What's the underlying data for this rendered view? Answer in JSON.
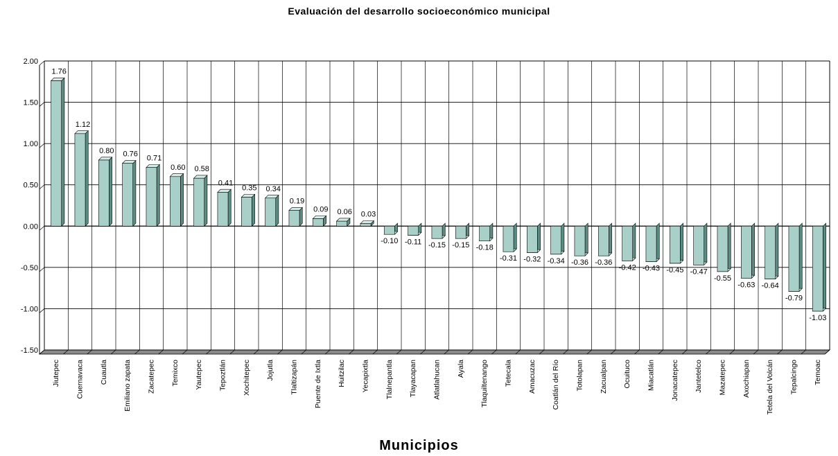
{
  "chart_data": {
    "type": "bar",
    "title": "Evaluación del desarrollo socioeconómico municipal",
    "xlabel": "Municipios",
    "ylabel": "",
    "ylim": [
      -1.5,
      2.0
    ],
    "yticks": [
      "2.00",
      "1.50",
      "1.00",
      "0.50",
      "0.00",
      "-0.50",
      "-1.00",
      "-1.50"
    ],
    "grid": true,
    "categories": [
      "Jiutepec",
      "Cuernavaca",
      "Cuautla",
      "Emiliano zapata",
      "Zacatepec",
      "Temixco",
      "Yautepec",
      "Tepoztlán",
      "Xochitepec",
      "Jojutla",
      "Tlaltizapán",
      "Puente de Ixtla",
      "Huitzilac",
      "Yecapixtla",
      "Tlalnepantla",
      "Tlayacapan",
      "Atlatlahucan",
      "Ayala",
      "Tlaquiltenango",
      "Tetecala",
      "Amacuzac",
      "Coatlán del Río",
      "Totolapan",
      "Zacualpan",
      "Ocuituco",
      "Miacatlán",
      "Jonacatepec",
      "Jantetelco",
      "Mazatepec",
      "Axochiapan",
      "Tetela del Volcán",
      "Tepalcingo",
      "Temoac"
    ],
    "values": [
      1.76,
      1.12,
      0.8,
      0.76,
      0.71,
      0.6,
      0.58,
      0.41,
      0.35,
      0.34,
      0.19,
      0.09,
      0.06,
      0.03,
      -0.1,
      -0.11,
      -0.15,
      -0.15,
      -0.18,
      -0.31,
      -0.32,
      -0.34,
      -0.36,
      -0.36,
      -0.42,
      -0.43,
      -0.45,
      -0.47,
      -0.55,
      -0.63,
      -0.64,
      -0.79,
      -1.03
    ],
    "data_labels": [
      "1.76",
      "1.12",
      "0.80",
      "0.76",
      "0.71",
      "0.60",
      "0.58",
      "0.41",
      "0.35",
      "0.34",
      "0.19",
      "0.09",
      "0.06",
      "0.03",
      "-0.10",
      "-0.11",
      "-0.15",
      "-0.15",
      "-0.18",
      "-0.31",
      "-0.32",
      "-0.34",
      "-0.36",
      "-0.36",
      "-0.42",
      "-0.43",
      "-0.45",
      "-0.47",
      "-0.55",
      "-0.63",
      "-0.64",
      "-0.79",
      "-1.03"
    ],
    "bar_color": "#a8d0c8",
    "bar_side_color": "#5e8c84",
    "bar_top_color": "#d7ece8"
  }
}
